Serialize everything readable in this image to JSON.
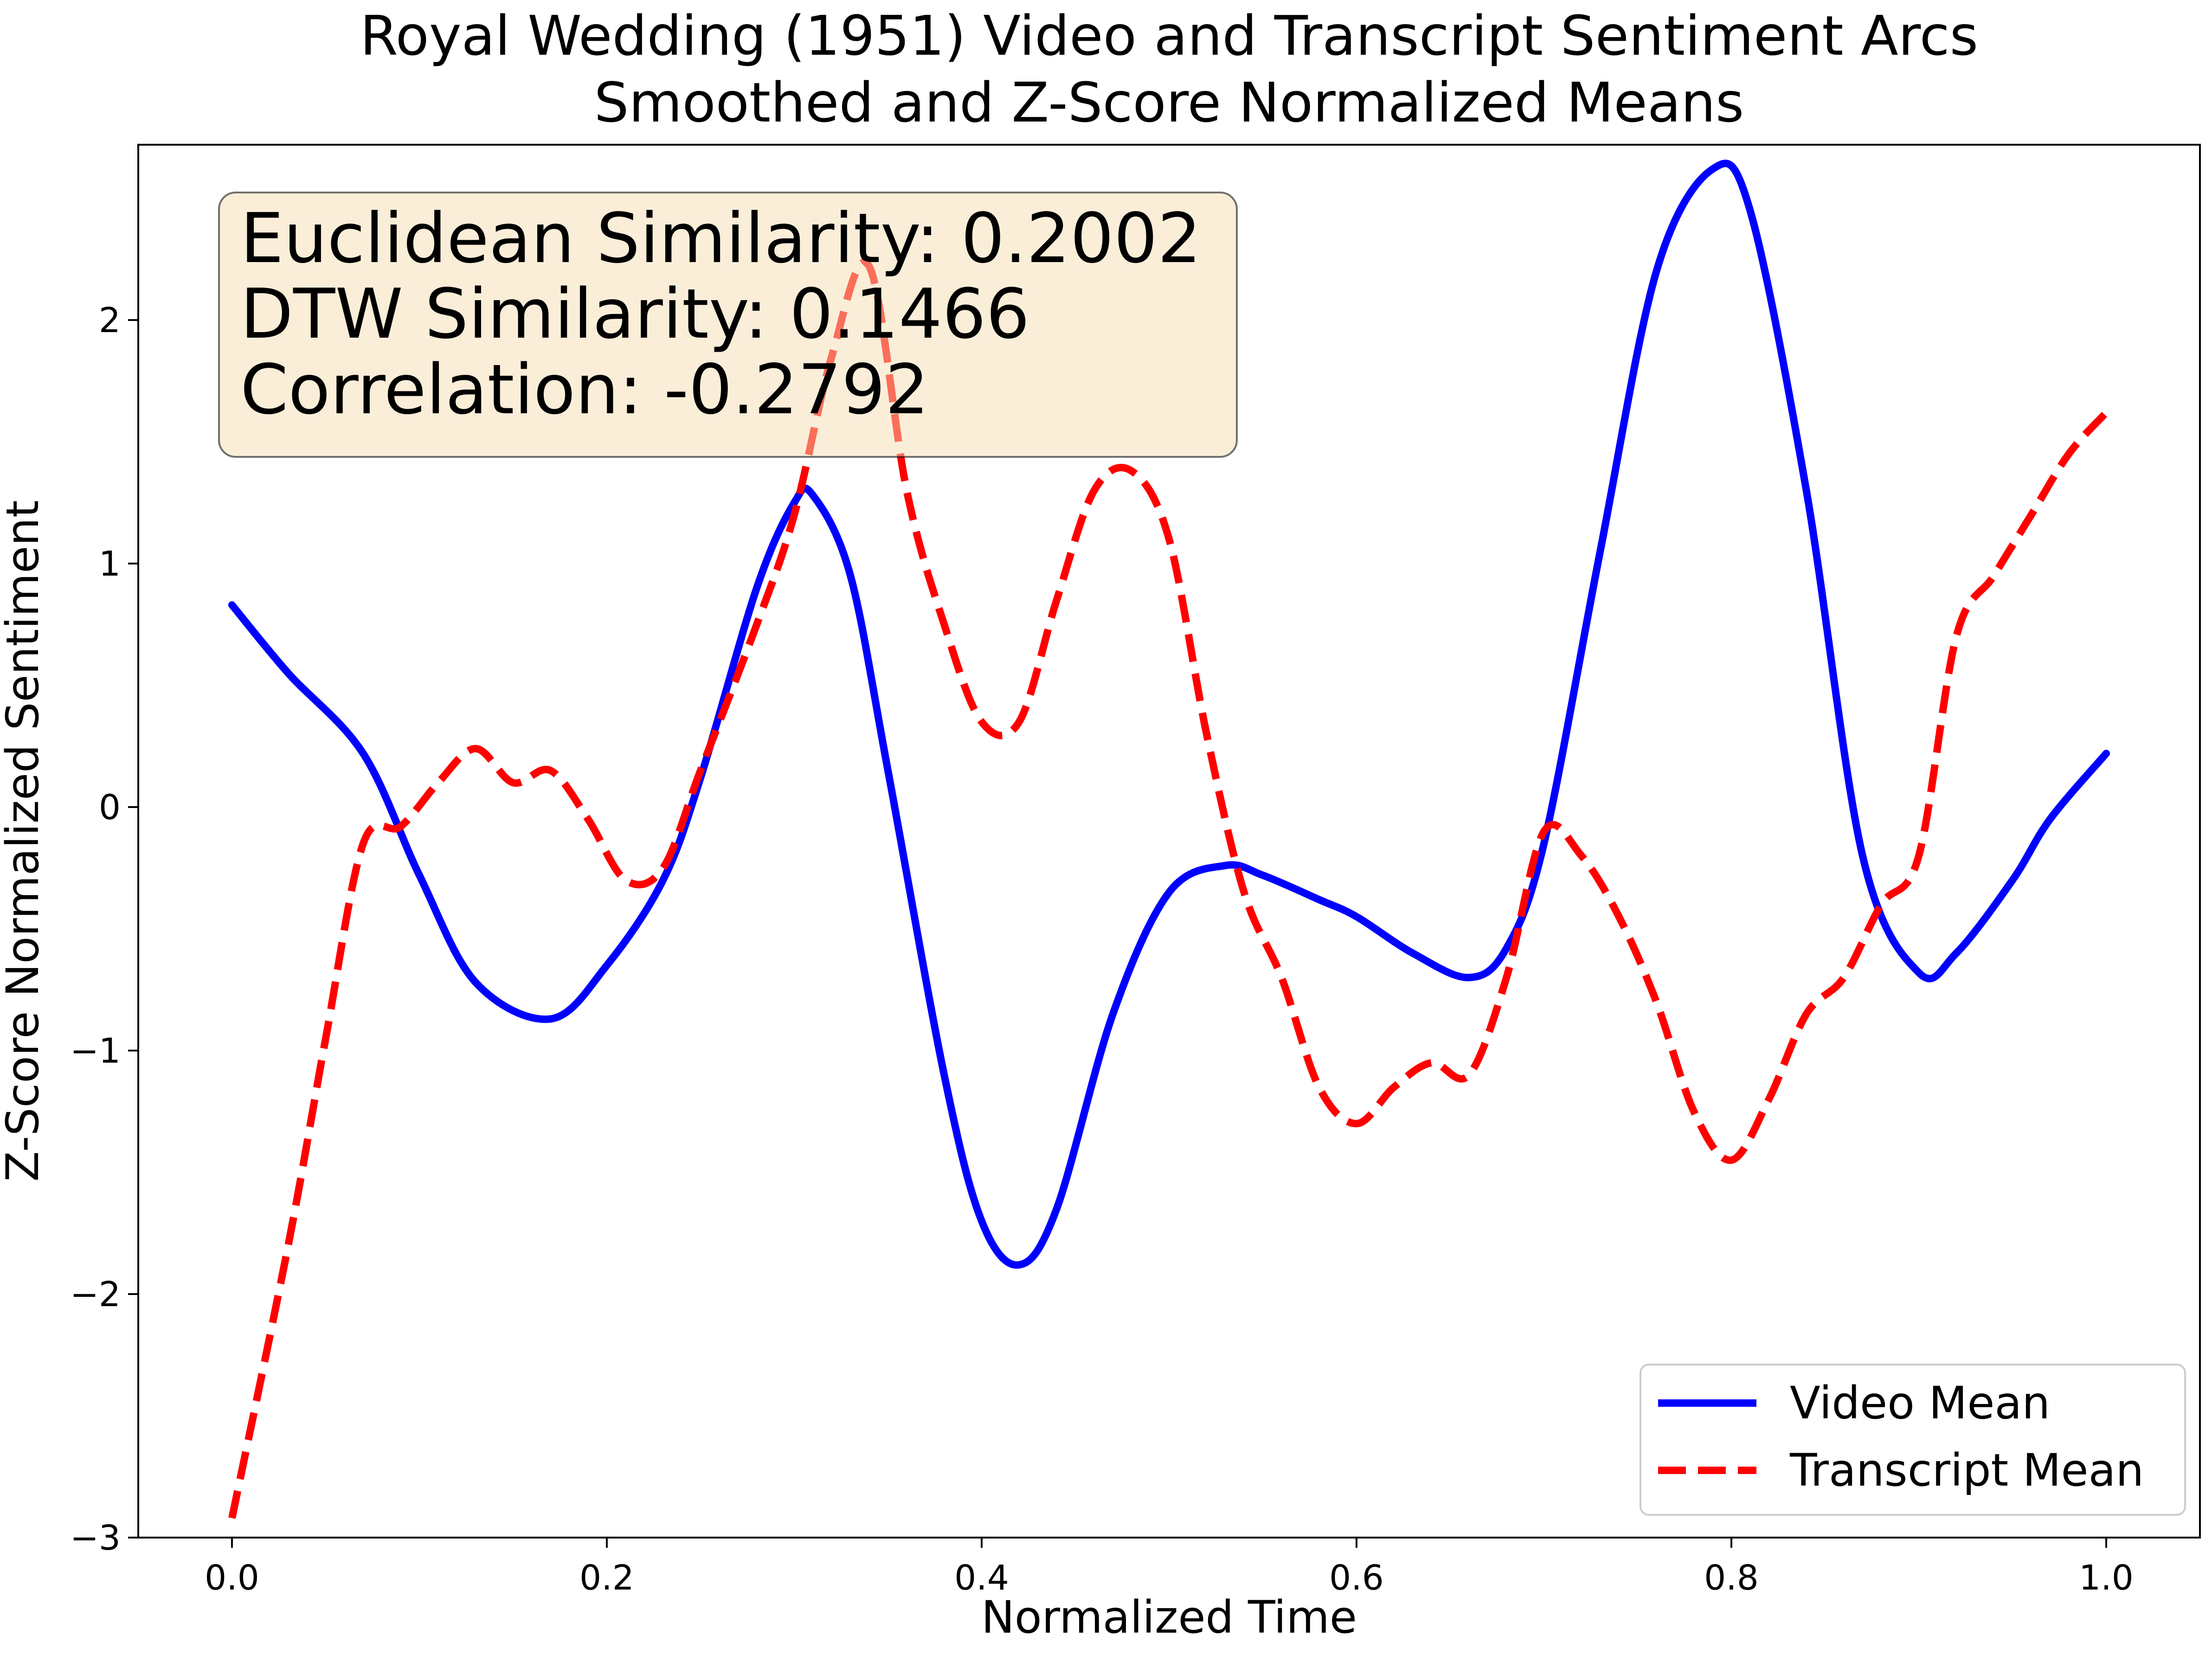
{
  "chart_data": {
    "type": "line",
    "title_line1": "Royal Wedding (1951) Video and Transcript Sentiment Arcs",
    "title_line2": "Smoothed and Z-Score Normalized Means",
    "xlabel": "Normalized Time",
    "ylabel": "Z-Score Normalized Sentiment",
    "xlim": [
      -0.05,
      1.05
    ],
    "ylim": [
      -3.0,
      2.72
    ],
    "x_ticks": [
      0.0,
      0.2,
      0.4,
      0.6,
      0.8,
      1.0
    ],
    "x_tick_labels": [
      "0.0",
      "0.2",
      "0.4",
      "0.6",
      "0.8",
      "1.0"
    ],
    "y_ticks": [
      -3,
      -2,
      -1,
      0,
      1,
      2
    ],
    "y_tick_labels": [
      "−3",
      "−2",
      "−1",
      "0",
      "1",
      "2"
    ],
    "grid": false,
    "legend_position": "lower-right",
    "annotation": {
      "line1": "Euclidean Similarity: 0.2002",
      "line2": "DTW Similarity: 0.1466",
      "line3": "Correlation: -0.2792"
    },
    "series": [
      {
        "name": "Video Mean",
        "color": "#0000ff",
        "style": "solid",
        "x": [
          0.0,
          0.03,
          0.07,
          0.1,
          0.13,
          0.17,
          0.2,
          0.23,
          0.25,
          0.28,
          0.3,
          0.31,
          0.33,
          0.35,
          0.38,
          0.4,
          0.42,
          0.44,
          0.47,
          0.5,
          0.53,
          0.55,
          0.58,
          0.6,
          0.63,
          0.66,
          0.68,
          0.7,
          0.73,
          0.76,
          0.79,
          0.81,
          0.84,
          0.87,
          0.9,
          0.92,
          0.95,
          0.97,
          1.0
        ],
        "y": [
          0.83,
          0.55,
          0.22,
          -0.28,
          -0.72,
          -0.87,
          -0.65,
          -0.3,
          0.12,
          0.9,
          1.25,
          1.28,
          0.95,
          0.15,
          -1.1,
          -1.7,
          -1.88,
          -1.65,
          -0.85,
          -0.35,
          -0.24,
          -0.28,
          -0.38,
          -0.45,
          -0.6,
          -0.7,
          -0.58,
          -0.15,
          1.05,
          2.2,
          2.62,
          2.45,
          1.3,
          -0.2,
          -0.68,
          -0.6,
          -0.3,
          -0.05,
          0.22
        ]
      },
      {
        "name": "Transcript Mean",
        "color": "#ff0000",
        "style": "dashed",
        "x": [
          0.0,
          0.03,
          0.05,
          0.07,
          0.09,
          0.11,
          0.13,
          0.15,
          0.17,
          0.19,
          0.21,
          0.23,
          0.25,
          0.28,
          0.3,
          0.32,
          0.34,
          0.36,
          0.38,
          0.4,
          0.42,
          0.44,
          0.46,
          0.48,
          0.5,
          0.52,
          0.54,
          0.56,
          0.58,
          0.6,
          0.62,
          0.64,
          0.66,
          0.68,
          0.7,
          0.72,
          0.74,
          0.76,
          0.78,
          0.8,
          0.82,
          0.84,
          0.86,
          0.88,
          0.9,
          0.92,
          0.94,
          0.96,
          0.98,
          1.0
        ],
        "y": [
          -2.92,
          -1.8,
          -0.95,
          -0.15,
          -0.08,
          0.1,
          0.24,
          0.1,
          0.15,
          -0.05,
          -0.3,
          -0.25,
          0.15,
          0.75,
          1.2,
          1.85,
          2.22,
          1.3,
          0.75,
          0.35,
          0.35,
          0.85,
          1.3,
          1.38,
          1.1,
          0.3,
          -0.35,
          -0.7,
          -1.15,
          -1.3,
          -1.15,
          -1.05,
          -1.1,
          -0.7,
          -0.1,
          -0.2,
          -0.45,
          -0.8,
          -1.25,
          -1.45,
          -1.2,
          -0.85,
          -0.7,
          -0.4,
          -0.2,
          0.7,
          0.95,
          1.2,
          1.45,
          1.62
        ]
      }
    ]
  }
}
